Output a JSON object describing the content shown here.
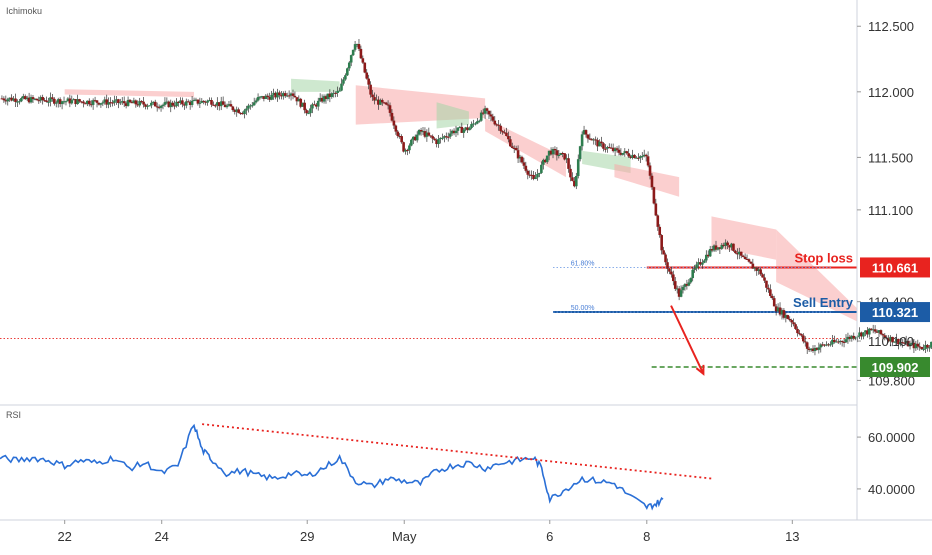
{
  "chart_data": [
    {
      "type": "candlestick",
      "title": "",
      "pane_label": "Ichimoku",
      "y_axis_side": "right",
      "ylim": [
        109.62,
        112.7
      ],
      "y_ticks": [
        {
          "value": 112.5,
          "label": "112.500"
        },
        {
          "value": 112.0,
          "label": "112.000"
        },
        {
          "value": 111.5,
          "label": "111.500"
        },
        {
          "value": 111.1,
          "label": "111.100"
        },
        {
          "value": 110.4,
          "label": "110.400"
        },
        {
          "value": 110.1,
          "label": "110.100"
        },
        {
          "value": 109.8,
          "label": "109.800"
        }
      ],
      "price_path": {
        "x": [
          0,
          4,
          7,
          10,
          13,
          15,
          16,
          17,
          18,
          19,
          20,
          21,
          22,
          23,
          24,
          25,
          26,
          27,
          28,
          29,
          30,
          31,
          33,
          34,
          35,
          35.5,
          36,
          37,
          38,
          39,
          40,
          41,
          42,
          43,
          44,
          45,
          46,
          46.5,
          47,
          48,
          48.5,
          49,
          50,
          51,
          52,
          53,
          54,
          55,
          56,
          57,
          58
        ],
        "close": [
          111.95,
          111.93,
          111.92,
          111.9,
          111.93,
          111.85,
          111.95,
          111.97,
          112.0,
          111.85,
          111.95,
          112.0,
          112.4,
          111.95,
          111.88,
          111.55,
          111.7,
          111.62,
          111.7,
          111.72,
          111.85,
          111.72,
          111.32,
          111.55,
          111.5,
          111.25,
          111.7,
          111.6,
          111.55,
          111.52,
          111.5,
          110.75,
          110.45,
          110.65,
          110.8,
          110.85,
          110.72,
          110.67,
          110.63,
          110.35,
          110.3,
          110.25,
          110.03,
          110.07,
          110.1,
          110.15,
          110.18,
          110.12,
          110.08,
          110.05,
          110.1
        ]
      },
      "ichimoku_cloud": [
        {
          "x": [
            4,
            12
          ],
          "top": [
            112.02,
            112.0
          ],
          "bottom": [
            111.98,
            111.96
          ],
          "color": "red"
        },
        {
          "x": [
            18,
            21
          ],
          "top": [
            112.1,
            112.08
          ],
          "bottom": [
            112.0,
            112.0
          ],
          "color": "green"
        },
        {
          "x": [
            22,
            30
          ],
          "top": [
            112.05,
            111.95
          ],
          "bottom": [
            111.75,
            111.8
          ],
          "color": "red"
        },
        {
          "x": [
            27,
            29
          ],
          "top": [
            111.92,
            111.85
          ],
          "bottom": [
            111.72,
            111.75
          ],
          "color": "green"
        },
        {
          "x": [
            30,
            35
          ],
          "top": [
            111.8,
            111.5
          ],
          "bottom": [
            111.7,
            111.35
          ],
          "color": "red"
        },
        {
          "x": [
            36,
            39
          ],
          "top": [
            111.55,
            111.5
          ],
          "bottom": [
            111.45,
            111.38
          ],
          "color": "green"
        },
        {
          "x": [
            38,
            42
          ],
          "top": [
            111.45,
            111.35
          ],
          "bottom": [
            111.35,
            111.2
          ],
          "color": "red"
        },
        {
          "x": [
            44,
            48
          ],
          "top": [
            111.05,
            110.95
          ],
          "bottom": [
            110.82,
            110.72
          ],
          "color": "red"
        },
        {
          "x": [
            48,
            53
          ],
          "top": [
            110.95,
            110.35
          ],
          "bottom": [
            110.55,
            110.25
          ],
          "color": "red"
        }
      ],
      "x_ticks": [
        {
          "x": 4,
          "label": "22"
        },
        {
          "x": 10,
          "label": "24"
        },
        {
          "x": 19,
          "label": "29"
        },
        {
          "x": 25,
          "label": "May"
        },
        {
          "x": 34,
          "label": "6"
        },
        {
          "x": 40,
          "label": "8"
        },
        {
          "x": 49,
          "label": "13"
        }
      ],
      "xlim": [
        0,
        53
      ],
      "levels": [
        {
          "name": "stop_loss",
          "value": 110.661,
          "label": "110.661",
          "annotation": "Stop loss",
          "color": "#e8231f",
          "style": "solid"
        },
        {
          "name": "sell_entry",
          "value": 110.321,
          "label": "110.321",
          "annotation": "Sell Entry",
          "color": "#1c5ca6",
          "style": "solid"
        },
        {
          "name": "take_profit",
          "value": 109.902,
          "label": "109.902",
          "annotation": "",
          "color": "#388a2e",
          "style": "dashed"
        },
        {
          "name": "current",
          "value": 110.12,
          "label": "",
          "annotation": "",
          "color": "#e8231f",
          "style": "dotted"
        }
      ],
      "fib_levels": [
        {
          "label": "61.80%",
          "value": 110.661
        },
        {
          "label": "50.00%",
          "value": 110.321
        }
      ],
      "arrow": {
        "from": [
          41.5,
          110.37
        ],
        "to": [
          43.5,
          109.85
        ],
        "color": "#e8231f"
      },
      "grid": false,
      "legend": "none"
    },
    {
      "type": "line",
      "title": "",
      "pane_label": "RSI",
      "y_axis_side": "right",
      "ylim": [
        28,
        72
      ],
      "y_ticks": [
        {
          "value": 60,
          "label": "60.0000"
        },
        {
          "value": 40,
          "label": "40.0000"
        }
      ],
      "series": [
        {
          "name": "",
          "color": "#2a6fd6",
          "x": [
            0,
            1,
            2,
            3,
            4,
            5,
            6,
            7,
            8,
            9,
            10,
            11,
            12,
            12.5,
            13,
            14,
            15,
            16,
            17,
            18,
            19,
            20,
            21,
            22,
            23,
            24,
            25,
            26,
            27,
            28,
            29,
            30,
            31,
            32,
            33,
            33.5,
            34,
            35,
            36,
            37,
            38,
            39,
            40,
            40.5,
            41
          ],
          "y": [
            52,
            51,
            52,
            51,
            49,
            51,
            50,
            52,
            48,
            50,
            46,
            49,
            65,
            55,
            52,
            46,
            47,
            45,
            44,
            46,
            45,
            48,
            52,
            43,
            41,
            44,
            43,
            42,
            47,
            49,
            50,
            48,
            50,
            51,
            52,
            48,
            36,
            40,
            44,
            43,
            42,
            37,
            33,
            34,
            36
          ]
        }
      ],
      "trendline": {
        "x": [
          12.5,
          44
        ],
        "y": [
          65,
          44
        ],
        "color": "#e8231f",
        "style": "dotted"
      },
      "xlim": [
        0,
        53
      ],
      "grid": false,
      "legend": "none"
    }
  ]
}
